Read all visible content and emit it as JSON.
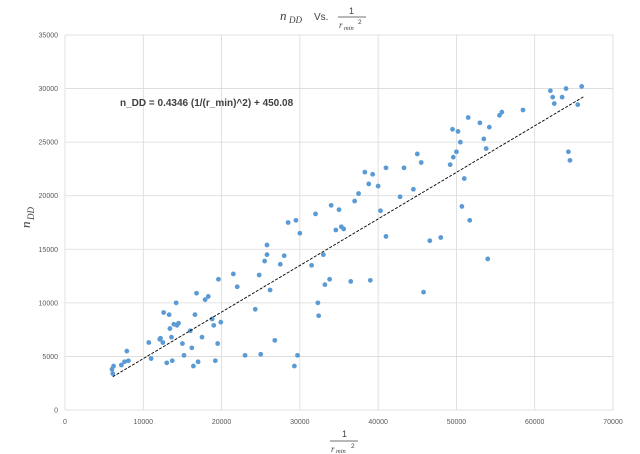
{
  "chart_data": {
    "type": "scatter",
    "title": {
      "left": "n",
      "left_sub": "DD",
      "vs": "Vs.",
      "frac_num": "1",
      "frac_den": "r",
      "frac_den_sub": "min",
      "frac_den_sup": "2"
    },
    "xlabel": {
      "num": "1",
      "den": "r",
      "den_sub": "min",
      "den_sup": "2"
    },
    "ylabel": {
      "main": "n",
      "sub": "DD"
    },
    "xlim": [
      0,
      70000
    ],
    "ylim": [
      0,
      35000
    ],
    "xticks": [
      "0",
      "10000",
      "20000",
      "30000",
      "40000",
      "50000",
      "60000",
      "70000"
    ],
    "yticks": [
      "0",
      "5000",
      "10000",
      "15000",
      "20000",
      "25000",
      "30000",
      "35000"
    ],
    "grid": true,
    "trendline": {
      "label": "n_DD = 0.4346 (1/(r_min)^2) + 450.08",
      "slope": 0.4346,
      "intercept": 450.08,
      "x_range": [
        6100,
        66300
      ],
      "color": "#000000"
    },
    "marker_color": "#5b9bd5",
    "series": [
      {
        "values": [
          [
            6000,
            3800
          ],
          [
            6100,
            3400
          ],
          [
            6200,
            4100
          ],
          [
            7200,
            4200
          ],
          [
            7600,
            4500
          ],
          [
            7900,
            5500
          ],
          [
            8100,
            4600
          ],
          [
            10700,
            6300
          ],
          [
            11000,
            4800
          ],
          [
            12100,
            6600
          ],
          [
            12200,
            6700
          ],
          [
            12500,
            6300
          ],
          [
            12600,
            9100
          ],
          [
            13000,
            4400
          ],
          [
            13300,
            8900
          ],
          [
            13400,
            7600
          ],
          [
            13600,
            6800
          ],
          [
            13700,
            4600
          ],
          [
            13900,
            8000
          ],
          [
            14200,
            10000
          ],
          [
            14300,
            7900
          ],
          [
            14500,
            8100
          ],
          [
            15000,
            6200
          ],
          [
            15200,
            5100
          ],
          [
            16000,
            7400
          ],
          [
            16200,
            5800
          ],
          [
            16400,
            4100
          ],
          [
            16600,
            8900
          ],
          [
            16800,
            10900
          ],
          [
            17000,
            4500
          ],
          [
            17500,
            6800
          ],
          [
            17900,
            10300
          ],
          [
            18300,
            10600
          ],
          [
            18800,
            8500
          ],
          [
            19000,
            7900
          ],
          [
            19200,
            4600
          ],
          [
            19500,
            6200
          ],
          [
            19600,
            12200
          ],
          [
            19900,
            8200
          ],
          [
            21500,
            12700
          ],
          [
            22000,
            11500
          ],
          [
            23000,
            5100
          ],
          [
            24300,
            9400
          ],
          [
            24800,
            12600
          ],
          [
            25000,
            5200
          ],
          [
            25500,
            13900
          ],
          [
            25800,
            15400
          ],
          [
            25800,
            14500
          ],
          [
            26200,
            11200
          ],
          [
            26800,
            6500
          ],
          [
            27500,
            13600
          ],
          [
            28000,
            14400
          ],
          [
            28500,
            17500
          ],
          [
            29300,
            4100
          ],
          [
            29500,
            17700
          ],
          [
            29700,
            5100
          ],
          [
            30000,
            16500
          ],
          [
            31500,
            13500
          ],
          [
            32000,
            18300
          ],
          [
            32300,
            10000
          ],
          [
            32400,
            8800
          ],
          [
            33000,
            14500
          ],
          [
            33200,
            11700
          ],
          [
            33800,
            12200
          ],
          [
            34000,
            19100
          ],
          [
            34600,
            16800
          ],
          [
            35000,
            18700
          ],
          [
            35300,
            17100
          ],
          [
            35600,
            16900
          ],
          [
            36500,
            12000
          ],
          [
            37000,
            19500
          ],
          [
            37500,
            20200
          ],
          [
            38300,
            22200
          ],
          [
            38800,
            21100
          ],
          [
            39000,
            12100
          ],
          [
            39300,
            22000
          ],
          [
            40000,
            20900
          ],
          [
            40300,
            18600
          ],
          [
            41000,
            16200
          ],
          [
            41000,
            22600
          ],
          [
            42800,
            19900
          ],
          [
            43300,
            22600
          ],
          [
            44500,
            20600
          ],
          [
            45000,
            23900
          ],
          [
            45500,
            23100
          ],
          [
            45800,
            11000
          ],
          [
            46600,
            15800
          ],
          [
            48000,
            16100
          ],
          [
            49200,
            22900
          ],
          [
            49500,
            26200
          ],
          [
            49600,
            23600
          ],
          [
            50000,
            24100
          ],
          [
            50200,
            26000
          ],
          [
            50500,
            25000
          ],
          [
            50700,
            19000
          ],
          [
            51000,
            21600
          ],
          [
            51500,
            27300
          ],
          [
            51700,
            17700
          ],
          [
            53000,
            26800
          ],
          [
            53500,
            25300
          ],
          [
            53800,
            24400
          ],
          [
            54000,
            14100
          ],
          [
            54200,
            26400
          ],
          [
            55500,
            27500
          ],
          [
            55800,
            27800
          ],
          [
            58500,
            28000
          ],
          [
            62000,
            29800
          ],
          [
            62300,
            29200
          ],
          [
            62500,
            28600
          ],
          [
            63500,
            29200
          ],
          [
            64000,
            30000
          ],
          [
            64300,
            24100
          ],
          [
            64500,
            23300
          ],
          [
            65500,
            28500
          ],
          [
            66000,
            30200
          ]
        ]
      }
    ]
  }
}
